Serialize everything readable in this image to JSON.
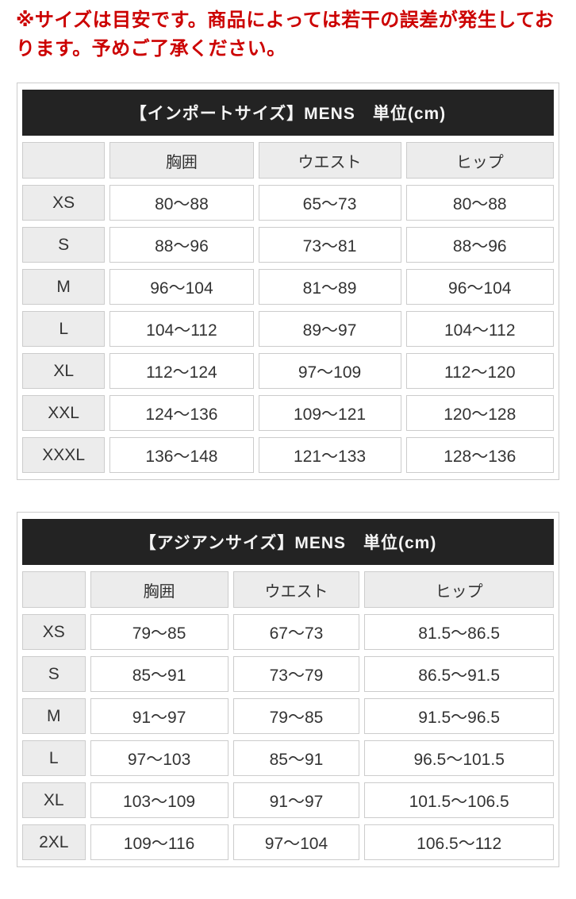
{
  "page": {
    "warning": "※サイズは目安です。商品によっては若干の誤差が発生しております。予めご了承ください。"
  },
  "colors": {
    "warning_text": "#cc0000",
    "title_bar_bg": "#232323",
    "title_bar_text": "#f5f5f5",
    "label_cell_bg": "#ececec",
    "cell_border": "#cccccc",
    "body_text": "#333333"
  },
  "tables": [
    {
      "title": "【インポートサイズ】MENS　単位(cm)",
      "columns": [
        "",
        "胸囲",
        "ウエスト",
        "ヒップ"
      ],
      "rows": [
        {
          "size": "XS",
          "values": [
            "80〜88",
            "65〜73",
            "80〜88"
          ]
        },
        {
          "size": "S",
          "values": [
            "88〜96",
            "73〜81",
            "88〜96"
          ]
        },
        {
          "size": "M",
          "values": [
            "96〜104",
            "81〜89",
            "96〜104"
          ]
        },
        {
          "size": "L",
          "values": [
            "104〜112",
            "89〜97",
            "104〜112"
          ]
        },
        {
          "size": "XL",
          "values": [
            "112〜124",
            "97〜109",
            "112〜120"
          ]
        },
        {
          "size": "XXL",
          "values": [
            "124〜136",
            "109〜121",
            "120〜128"
          ]
        },
        {
          "size": "XXXL",
          "values": [
            "136〜148",
            "121〜133",
            "128〜136"
          ]
        }
      ]
    },
    {
      "title": "【アジアンサイズ】MENS　単位(cm)",
      "columns": [
        "",
        "胸囲",
        "ウエスト",
        "ヒップ"
      ],
      "rows": [
        {
          "size": "XS",
          "values": [
            "79〜85",
            "67〜73",
            "81.5〜86.5"
          ]
        },
        {
          "size": "S",
          "values": [
            "85〜91",
            "73〜79",
            "86.5〜91.5"
          ]
        },
        {
          "size": "M",
          "values": [
            "91〜97",
            "79〜85",
            "91.5〜96.5"
          ]
        },
        {
          "size": "L",
          "values": [
            "97〜103",
            "85〜91",
            "96.5〜101.5"
          ]
        },
        {
          "size": "XL",
          "values": [
            "103〜109",
            "91〜97",
            "101.5〜106.5"
          ]
        },
        {
          "size": "2XL",
          "values": [
            "109〜116",
            "97〜104",
            "106.5〜112"
          ]
        }
      ]
    }
  ]
}
